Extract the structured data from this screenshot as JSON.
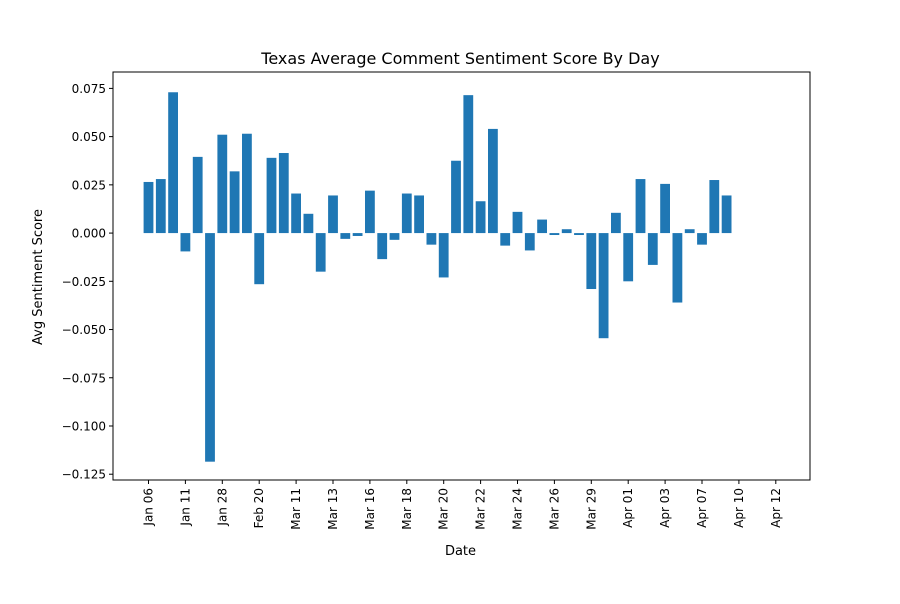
{
  "chart_data": {
    "type": "bar",
    "title": "Texas Average Comment Sentiment Score By Day",
    "xlabel": "Date",
    "ylabel": "Avg Sentiment Score",
    "ylim": [
      -0.128,
      0.0835
    ],
    "yticks": [
      "0.075",
      "0.050",
      "0.025",
      "0.000",
      "−0.025",
      "−0.050",
      "−0.075",
      "−0.100",
      "−0.125"
    ],
    "ytick_values": [
      0.075,
      0.05,
      0.025,
      0.0,
      -0.025,
      -0.05,
      -0.075,
      -0.1,
      -0.125
    ],
    "xtick_labels": [
      "Jan 06",
      "Jan 11",
      "Jan 28",
      "Feb 20",
      "Mar 11",
      "Mar 13",
      "Mar 16",
      "Mar 18",
      "Mar 20",
      "Mar 22",
      "Mar 24",
      "Mar 26",
      "Mar 29",
      "Apr 01",
      "Apr 03",
      "Apr 07",
      "Apr 10",
      "Apr 12"
    ],
    "grid": false,
    "bar_color": "#1f77b4",
    "values": [
      0.0265,
      0.028,
      0.073,
      -0.0095,
      0.0395,
      -0.1185,
      0.051,
      0.032,
      0.0515,
      -0.0265,
      0.039,
      0.0415,
      0.0205,
      0.01,
      -0.02,
      0.0195,
      -0.003,
      -0.0015,
      0.022,
      -0.0135,
      -0.0035,
      0.0205,
      0.0195,
      -0.006,
      -0.023,
      0.0375,
      0.0715,
      0.0165,
      0.054,
      -0.0065,
      0.011,
      -0.009,
      0.007,
      -0.001,
      0.002,
      -0.001,
      -0.029,
      -0.0545,
      0.0105,
      -0.025,
      0.028,
      -0.0165,
      0.0255,
      -0.036,
      0.002,
      -0.006,
      0.0275,
      0.0195
    ]
  }
}
